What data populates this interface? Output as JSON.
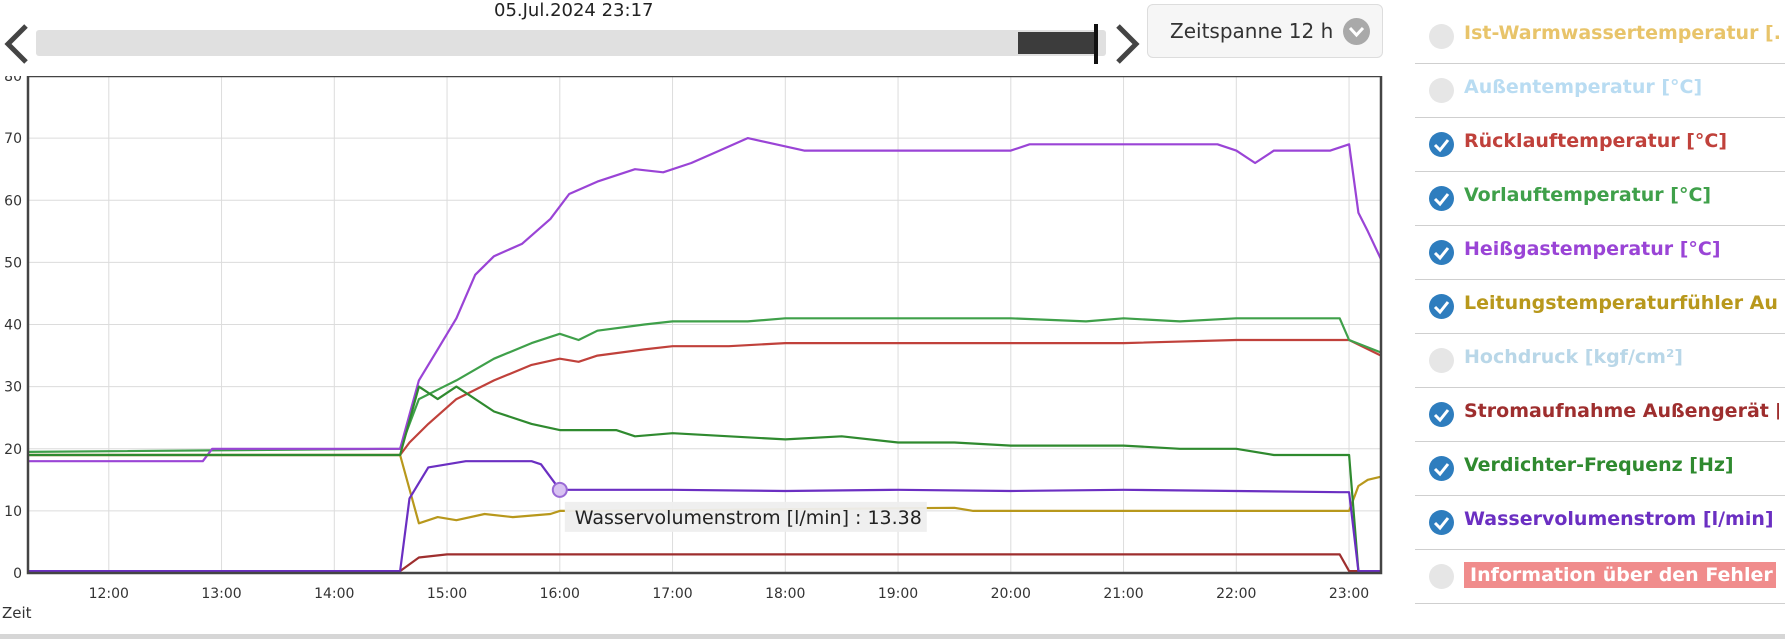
{
  "timestamp": "05.Jul.2024 23:17",
  "zeitspanne": "Zeitspanne 12 h",
  "xaxis_label": "Zeit",
  "tooltip": "Wasservolumenstrom [l/min] : 13.38",
  "legend": [
    {
      "label": "Ist-Warmwassertemperatur [...",
      "color": "#e8c46a",
      "checked": false
    },
    {
      "label": "Außentemperatur [°C]",
      "color": "#b9dcf2",
      "checked": false
    },
    {
      "label": "Rücklauftemperatur [°C]",
      "color": "#c0413b",
      "checked": true
    },
    {
      "label": "Vorlauftemperatur [°C]",
      "color": "#3fa04a",
      "checked": true
    },
    {
      "label": "Heißgastemperatur [°C]",
      "color": "#9a44d6",
      "checked": true
    },
    {
      "label": "Leitungstemperaturfühler Au...",
      "color": "#b8981c",
      "checked": true
    },
    {
      "label": "Hochdruck [kgf/cm²]",
      "color": "#b9d7e8",
      "checked": false
    },
    {
      "label": "Stromaufnahme Außengerät [...",
      "color": "#9e2e2e",
      "checked": true
    },
    {
      "label": "Verdichter-Frequenz [Hz]",
      "color": "#2f8a2f",
      "checked": true
    },
    {
      "label": "Wasservolumenstrom [l/min]",
      "color": "#6b2fc2",
      "checked": true
    },
    {
      "label": "Information über den Fehler",
      "color": "#f08c8c",
      "checked": false,
      "badge": true
    }
  ],
  "chart_data": {
    "type": "line",
    "xlabel": "Zeit",
    "ylabel": "",
    "x_range": [
      "11:17",
      "23:17"
    ],
    "ylim": [
      0,
      80
    ],
    "y_ticks": [
      0,
      10,
      20,
      30,
      40,
      50,
      60,
      70,
      80
    ],
    "x_ticks": [
      "12:00",
      "13:00",
      "14:00",
      "15:00",
      "16:00",
      "17:00",
      "18:00",
      "19:00",
      "20:00",
      "21:00",
      "22:00",
      "23:00"
    ],
    "grid": true,
    "series": [
      {
        "name": "Rücklauftemperatur [°C]",
        "color": "#c0413b",
        "points": [
          [
            "11:17",
            19
          ],
          [
            "14:35",
            19
          ],
          [
            "14:40",
            21
          ],
          [
            "14:50",
            24
          ],
          [
            "15:05",
            28
          ],
          [
            "15:25",
            31
          ],
          [
            "15:45",
            33.5
          ],
          [
            "16:00",
            34.5
          ],
          [
            "16:10",
            34
          ],
          [
            "16:20",
            35
          ],
          [
            "16:45",
            36
          ],
          [
            "17:00",
            36.5
          ],
          [
            "17:30",
            36.5
          ],
          [
            "18:00",
            37
          ],
          [
            "21:00",
            37
          ],
          [
            "22:00",
            37.5
          ],
          [
            "23:00",
            37.5
          ],
          [
            "23:17",
            35
          ]
        ]
      },
      {
        "name": "Vorlauftemperatur [°C]",
        "color": "#3fa04a",
        "points": [
          [
            "11:17",
            19.5
          ],
          [
            "14:35",
            20
          ],
          [
            "14:45",
            28
          ],
          [
            "14:55",
            29.5
          ],
          [
            "15:05",
            31
          ],
          [
            "15:25",
            34.5
          ],
          [
            "15:45",
            37
          ],
          [
            "16:00",
            38.5
          ],
          [
            "16:10",
            37.5
          ],
          [
            "16:20",
            39
          ],
          [
            "16:45",
            40
          ],
          [
            "17:00",
            40.5
          ],
          [
            "17:40",
            40.5
          ],
          [
            "18:00",
            41
          ],
          [
            "20:00",
            41
          ],
          [
            "20:40",
            40.5
          ],
          [
            "21:00",
            41
          ],
          [
            "21:30",
            40.5
          ],
          [
            "22:00",
            41
          ],
          [
            "22:55",
            41
          ],
          [
            "23:00",
            37.5
          ],
          [
            "23:17",
            35.5
          ]
        ]
      },
      {
        "name": "Heißgastemperatur [°C]",
        "color": "#9a44d6",
        "points": [
          [
            "11:17",
            18
          ],
          [
            "12:50",
            18
          ],
          [
            "12:55",
            20
          ],
          [
            "14:35",
            20
          ],
          [
            "14:45",
            31
          ],
          [
            "14:55",
            36
          ],
          [
            "15:05",
            41
          ],
          [
            "15:15",
            48
          ],
          [
            "15:25",
            51
          ],
          [
            "15:40",
            53
          ],
          [
            "15:55",
            57
          ],
          [
            "16:05",
            61
          ],
          [
            "16:20",
            63
          ],
          [
            "16:40",
            65
          ],
          [
            "16:55",
            64.5
          ],
          [
            "17:10",
            66
          ],
          [
            "17:25",
            68
          ],
          [
            "17:40",
            70
          ],
          [
            "17:55",
            69
          ],
          [
            "18:10",
            68
          ],
          [
            "20:00",
            68
          ],
          [
            "20:10",
            69
          ],
          [
            "21:00",
            69
          ],
          [
            "21:50",
            69
          ],
          [
            "22:00",
            68
          ],
          [
            "22:10",
            66
          ],
          [
            "22:20",
            68
          ],
          [
            "22:50",
            68
          ],
          [
            "23:00",
            69
          ],
          [
            "23:05",
            58
          ],
          [
            "23:10",
            55
          ],
          [
            "23:17",
            50.5
          ]
        ]
      },
      {
        "name": "Leitungstemperaturfühler Au...",
        "color": "#b8981c",
        "points": [
          [
            "11:17",
            19
          ],
          [
            "14:35",
            19
          ],
          [
            "14:45",
            8
          ],
          [
            "14:55",
            9
          ],
          [
            "15:05",
            8.5
          ],
          [
            "15:20",
            9.5
          ],
          [
            "15:35",
            9
          ],
          [
            "15:55",
            9.5
          ],
          [
            "16:00",
            10
          ],
          [
            "16:20",
            10
          ],
          [
            "19:30",
            10.5
          ],
          [
            "19:40",
            10
          ],
          [
            "22:55",
            10
          ],
          [
            "23:00",
            10
          ],
          [
            "23:05",
            14
          ],
          [
            "23:10",
            15
          ],
          [
            "23:17",
            15.5
          ]
        ]
      },
      {
        "name": "Stromaufnahme Außengerät [...",
        "color": "#9e2e2e",
        "points": [
          [
            "11:17",
            0.3
          ],
          [
            "14:35",
            0.3
          ],
          [
            "14:45",
            2.5
          ],
          [
            "15:00",
            3
          ],
          [
            "15:30",
            3
          ],
          [
            "16:00",
            3
          ],
          [
            "17:00",
            3
          ],
          [
            "18:00",
            3
          ],
          [
            "19:00",
            3
          ],
          [
            "20:00",
            3
          ],
          [
            "21:00",
            3
          ],
          [
            "22:00",
            3
          ],
          [
            "22:55",
            3
          ],
          [
            "23:00",
            0.3
          ],
          [
            "23:17",
            0.3
          ]
        ]
      },
      {
        "name": "Verdichter-Frequenz [Hz]",
        "color": "#2f8a2f",
        "points": [
          [
            "11:17",
            19
          ],
          [
            "14:35",
            19
          ],
          [
            "14:45",
            30
          ],
          [
            "14:55",
            28
          ],
          [
            "15:05",
            30
          ],
          [
            "15:25",
            26
          ],
          [
            "15:45",
            24
          ],
          [
            "16:00",
            23
          ],
          [
            "16:30",
            23
          ],
          [
            "16:40",
            22
          ],
          [
            "17:00",
            22.5
          ],
          [
            "17:30",
            22
          ],
          [
            "18:00",
            21.5
          ],
          [
            "18:30",
            22
          ],
          [
            "19:00",
            21
          ],
          [
            "19:30",
            21
          ],
          [
            "20:00",
            20.5
          ],
          [
            "21:00",
            20.5
          ],
          [
            "21:30",
            20
          ],
          [
            "22:00",
            20
          ],
          [
            "22:20",
            19
          ],
          [
            "22:50",
            19
          ],
          [
            "23:00",
            19
          ],
          [
            "23:05",
            0.3
          ],
          [
            "23:17",
            0.3
          ]
        ]
      },
      {
        "name": "Wasservolumenstrom [l/min]",
        "color": "#6b2fc2",
        "points": [
          [
            "11:17",
            0.3
          ],
          [
            "14:35",
            0.3
          ],
          [
            "14:40",
            12
          ],
          [
            "14:50",
            17
          ],
          [
            "15:00",
            17.5
          ],
          [
            "15:10",
            18
          ],
          [
            "15:45",
            18
          ],
          [
            "15:50",
            17.5
          ],
          [
            "16:00",
            13.4
          ],
          [
            "17:00",
            13.4
          ],
          [
            "18:00",
            13.2
          ],
          [
            "19:00",
            13.4
          ],
          [
            "20:00",
            13.2
          ],
          [
            "21:00",
            13.4
          ],
          [
            "22:00",
            13.2
          ],
          [
            "22:55",
            13
          ],
          [
            "23:00",
            13
          ],
          [
            "23:05",
            0.3
          ],
          [
            "23:17",
            0.3
          ]
        ]
      }
    ],
    "tooltip": {
      "series": "Wasservolumenstrom [l/min]",
      "time": "16:00",
      "value": 13.38
    }
  }
}
